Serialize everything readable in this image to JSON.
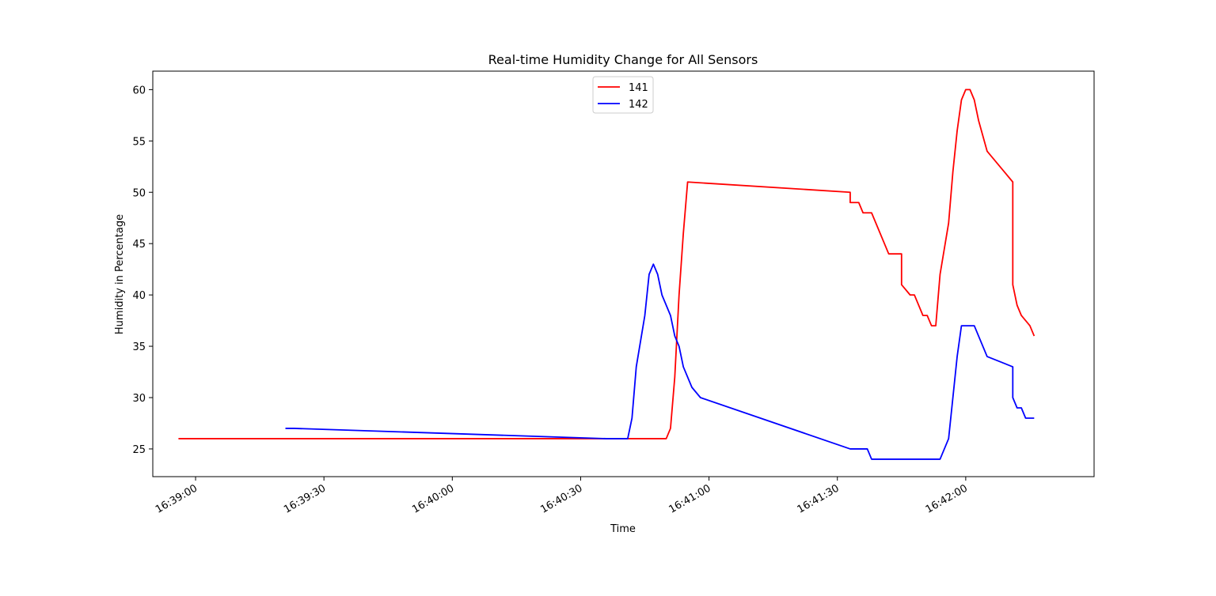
{
  "chart_data": {
    "type": "line",
    "title": "Real-time Humidity Change for All Sensors",
    "xlabel": "Time",
    "ylabel": "Humidity in Percentage",
    "xlim": [
      "16:38:50",
      "16:42:30"
    ],
    "ylim": [
      22.3,
      61.8
    ],
    "x_ticks": [
      "16:39:00",
      "16:39:30",
      "16:40:00",
      "16:40:30",
      "16:41:00",
      "16:41:30",
      "16:42:00"
    ],
    "y_ticks": [
      25,
      30,
      35,
      40,
      45,
      50,
      55,
      60
    ],
    "legend_position": "top-center",
    "grid": false,
    "series": [
      {
        "name": "141",
        "color": "#ff0000",
        "points": [
          [
            "16:38:56",
            26
          ],
          [
            "16:40:50",
            26
          ],
          [
            "16:40:51",
            27
          ],
          [
            "16:40:52",
            32
          ],
          [
            "16:40:53",
            40
          ],
          [
            "16:40:54",
            46
          ],
          [
            "16:40:55",
            51
          ],
          [
            "16:41:33",
            50
          ],
          [
            "16:41:33",
            49
          ],
          [
            "16:41:35",
            49
          ],
          [
            "16:41:36",
            48
          ],
          [
            "16:41:38",
            48
          ],
          [
            "16:41:42",
            44
          ],
          [
            "16:41:45",
            44
          ],
          [
            "16:41:45",
            41
          ],
          [
            "16:41:47",
            40
          ],
          [
            "16:41:48",
            40
          ],
          [
            "16:41:50",
            38
          ],
          [
            "16:41:51",
            38
          ],
          [
            "16:41:52",
            37
          ],
          [
            "16:41:53",
            37
          ],
          [
            "16:41:54",
            42
          ],
          [
            "16:41:56",
            47
          ],
          [
            "16:41:57",
            52
          ],
          [
            "16:41:58",
            56
          ],
          [
            "16:41:59",
            59
          ],
          [
            "16:42:00",
            60
          ],
          [
            "16:42:01",
            60
          ],
          [
            "16:42:02",
            59
          ],
          [
            "16:42:03",
            57
          ],
          [
            "16:42:05",
            54
          ],
          [
            "16:42:11",
            51
          ],
          [
            "16:42:11",
            41
          ],
          [
            "16:42:12",
            39
          ],
          [
            "16:42:13",
            38
          ],
          [
            "16:42:15",
            37
          ],
          [
            "16:42:16",
            36
          ]
        ]
      },
      {
        "name": "142",
        "color": "#0000ff",
        "points": [
          [
            "16:39:21",
            27
          ],
          [
            "16:39:23",
            27
          ],
          [
            "16:40:36",
            26
          ],
          [
            "16:40:41",
            26
          ],
          [
            "16:40:42",
            28
          ],
          [
            "16:40:43",
            33
          ],
          [
            "16:40:45",
            38
          ],
          [
            "16:40:46",
            42
          ],
          [
            "16:40:47",
            43
          ],
          [
            "16:40:48",
            42
          ],
          [
            "16:40:49",
            40
          ],
          [
            "16:40:51",
            38
          ],
          [
            "16:40:52",
            36
          ],
          [
            "16:40:53",
            35
          ],
          [
            "16:40:54",
            33
          ],
          [
            "16:40:56",
            31
          ],
          [
            "16:40:58",
            30
          ],
          [
            "16:41:33",
            25
          ],
          [
            "16:41:37",
            25
          ],
          [
            "16:41:38",
            24
          ],
          [
            "16:41:54",
            24
          ],
          [
            "16:41:56",
            26
          ],
          [
            "16:41:58",
            34
          ],
          [
            "16:41:59",
            37
          ],
          [
            "16:42:02",
            37
          ],
          [
            "16:42:05",
            34
          ],
          [
            "16:42:11",
            33
          ],
          [
            "16:42:11",
            30
          ],
          [
            "16:42:12",
            29
          ],
          [
            "16:42:13",
            29
          ],
          [
            "16:42:14",
            28
          ],
          [
            "16:42:16",
            28
          ]
        ]
      }
    ]
  }
}
